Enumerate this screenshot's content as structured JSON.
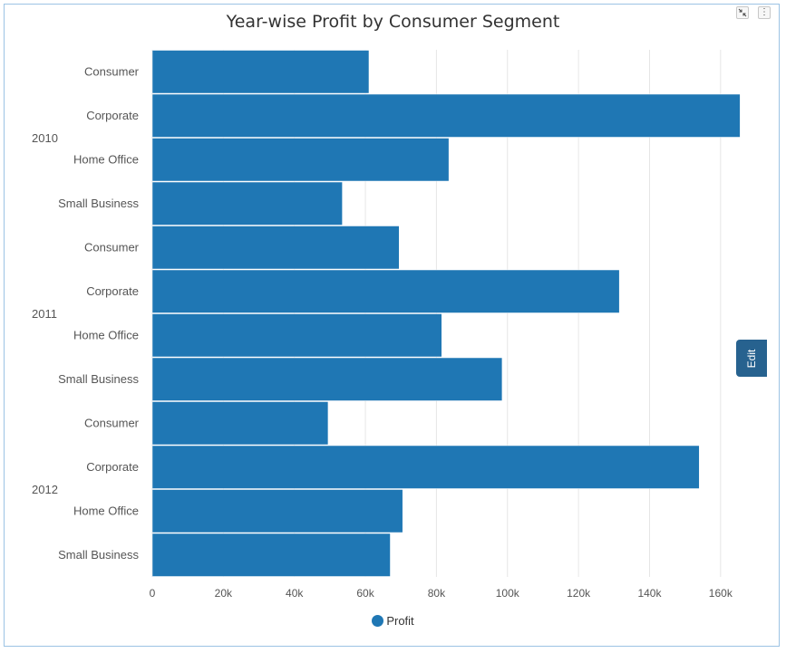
{
  "title": "Year-wise Profit by Consumer Segment",
  "toolbar": {
    "collapse_icon": "collapse-arrows-icon",
    "menu_icon": "vertical-ellipsis-icon",
    "menu_glyph": "⋮"
  },
  "edit_label": "Edit",
  "colors": {
    "bar": "#1f77b4",
    "grid": "#e6e6e6",
    "edit_tab": "#27628f",
    "border": "#9cc3e4"
  },
  "chart_data": {
    "type": "bar",
    "orientation": "horizontal",
    "title": "Year-wise Profit by Consumer Segment",
    "groups": [
      {
        "label": "2010",
        "categories": [
          "Consumer",
          "Corporate",
          "Home Office",
          "Small Business"
        ],
        "values": [
          61000,
          165500,
          83500,
          53500
        ]
      },
      {
        "label": "2011",
        "categories": [
          "Consumer",
          "Corporate",
          "Home Office",
          "Small Business"
        ],
        "values": [
          69500,
          131500,
          81500,
          98500
        ]
      },
      {
        "label": "2012",
        "categories": [
          "Consumer",
          "Corporate",
          "Home Office",
          "Small Business"
        ],
        "values": [
          49500,
          154000,
          70500,
          67000
        ]
      }
    ],
    "series": [
      {
        "name": "Profit"
      }
    ],
    "xlim": [
      0,
      170000
    ],
    "xticks": [
      0,
      20000,
      40000,
      60000,
      80000,
      100000,
      120000,
      140000,
      160000
    ],
    "xtick_labels": [
      "0",
      "20k",
      "40k",
      "60k",
      "80k",
      "100k",
      "120k",
      "140k",
      "160k"
    ],
    "grid": true,
    "legend": "bottom-center"
  }
}
